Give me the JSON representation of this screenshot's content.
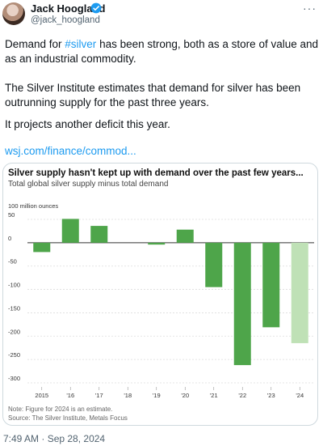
{
  "author": {
    "name": "Jack Hoogland",
    "handle": "@jack_hoogland"
  },
  "tweet": {
    "line1_pre": "Demand for ",
    "hashtag": "#silver",
    "line1_post": " has been strong, both as a store of value and as an industrial commodity.",
    "paragraph2": "The Silver Institute estimates that demand for silver has been outrunning supply for the past three years.",
    "paragraph3": "It projects another deficit this year.",
    "link": "wsj.com/finance/commod..."
  },
  "timestamp": "7:49 AM · Sep 28, 2024",
  "chart_data": {
    "type": "bar",
    "title": "Silver supply hasn't kept up with demand over the past few years...",
    "subtitle": "Total global silver supply minus total demand",
    "unit_label": "100 million ounces",
    "categories": [
      "2015",
      "'16",
      "'17",
      "'18",
      "'19",
      "'20",
      "'21",
      "'22",
      "'23",
      "'24"
    ],
    "values": [
      -20,
      51,
      36,
      0,
      -4,
      28,
      -95,
      -262,
      -181,
      -215
    ],
    "estimate_flags": [
      false,
      false,
      false,
      false,
      false,
      false,
      false,
      false,
      false,
      true
    ],
    "yticks": [
      "50",
      "0",
      "-50",
      "-100",
      "-150",
      "-200",
      "-250",
      "-300"
    ],
    "ylim": [
      -300,
      50
    ],
    "grid": true,
    "colors": {
      "bar": "#4ea54a",
      "estimate": "#bfe1b6",
      "zero_line": "#333333",
      "grid": "#dddddd"
    },
    "note": "Note: Figure for 2024 is an estimate.",
    "source": "Source: The Silver Institute, Metals Focus"
  }
}
